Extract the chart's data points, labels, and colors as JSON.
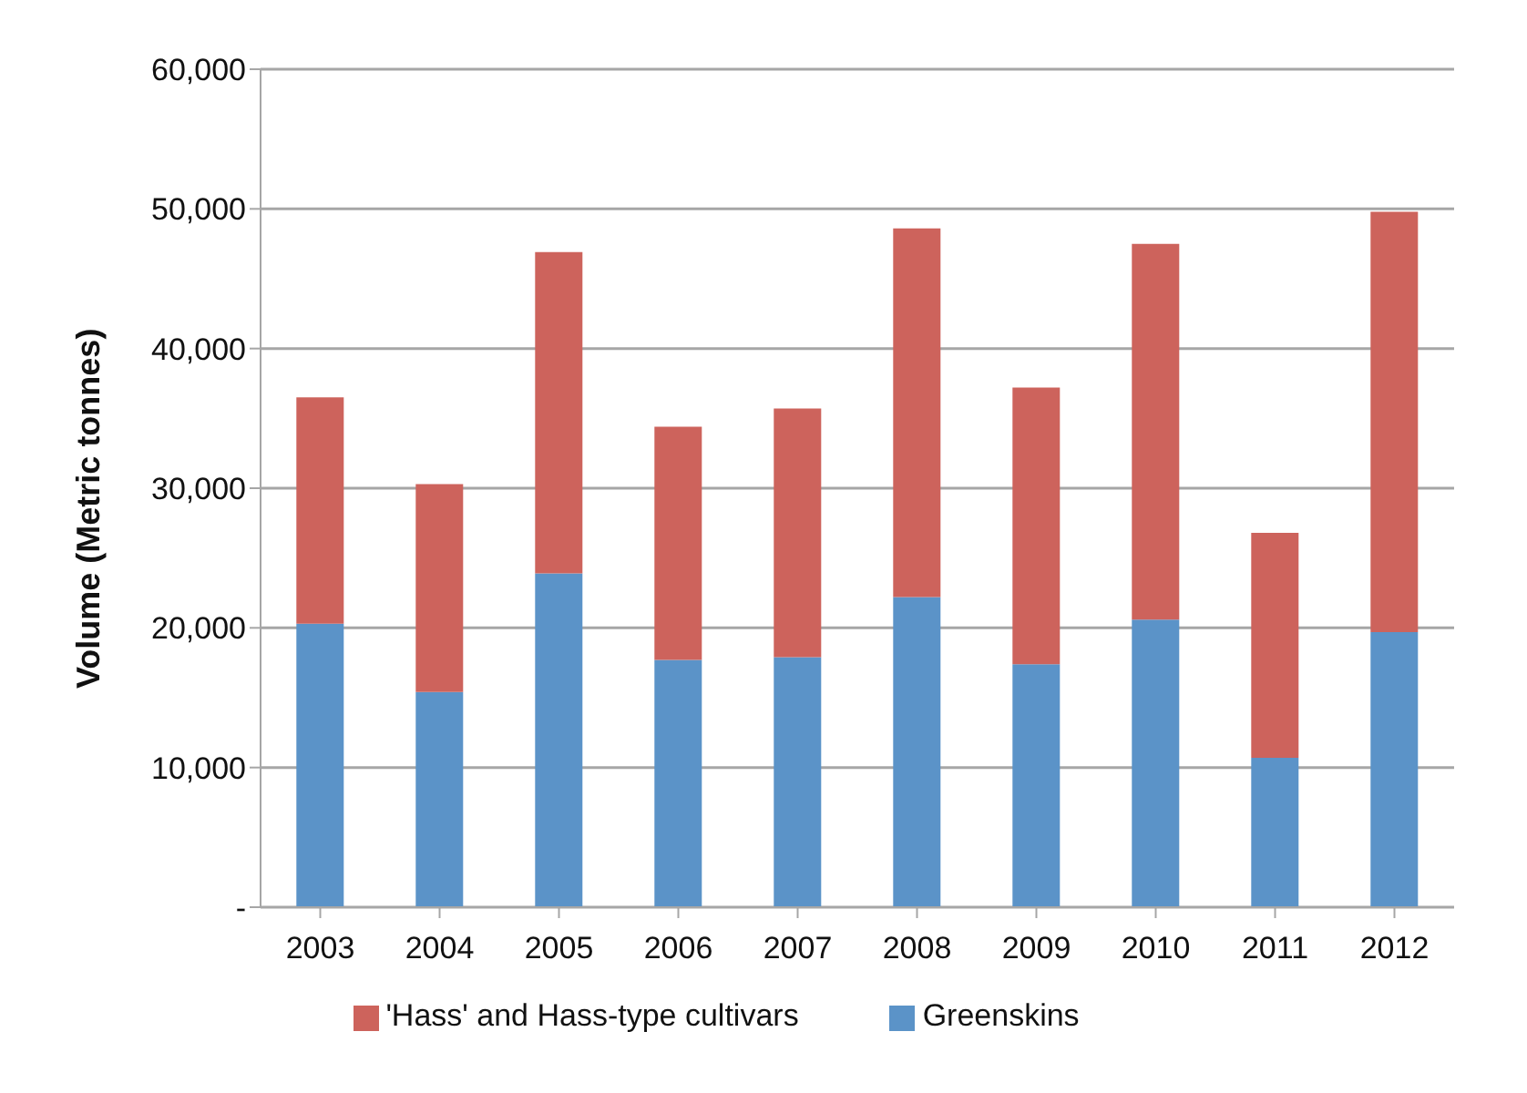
{
  "chart_data": {
    "type": "bar",
    "stacked": true,
    "ylabel": "Volume (Metric tonnes)",
    "categories": [
      "2003",
      "2004",
      "2005",
      "2006",
      "2007",
      "2008",
      "2009",
      "2010",
      "2011",
      "2012"
    ],
    "series": [
      {
        "name": "Greenskins",
        "color": "#5b93c8",
        "values": [
          20300,
          15400,
          23900,
          17700,
          17900,
          22200,
          17400,
          20600,
          10700,
          19700
        ]
      },
      {
        "name": "'Hass' and Hass-type cultivars",
        "color": "#cd635c",
        "values": [
          16200,
          14900,
          23000,
          16700,
          17800,
          26400,
          19800,
          26900,
          16100,
          30100
        ]
      }
    ],
    "ylim": [
      0,
      60000
    ],
    "yticks": [
      {
        "value": 0,
        "label": "-"
      },
      {
        "value": 10000,
        "label": "10,000"
      },
      {
        "value": 20000,
        "label": "20,000"
      },
      {
        "value": 30000,
        "label": "30,000"
      },
      {
        "value": 40000,
        "label": "40,000"
      },
      {
        "value": 50000,
        "label": "50,000"
      },
      {
        "value": 60000,
        "label": "60,000"
      }
    ],
    "grid": "y",
    "legend": "bottom"
  }
}
